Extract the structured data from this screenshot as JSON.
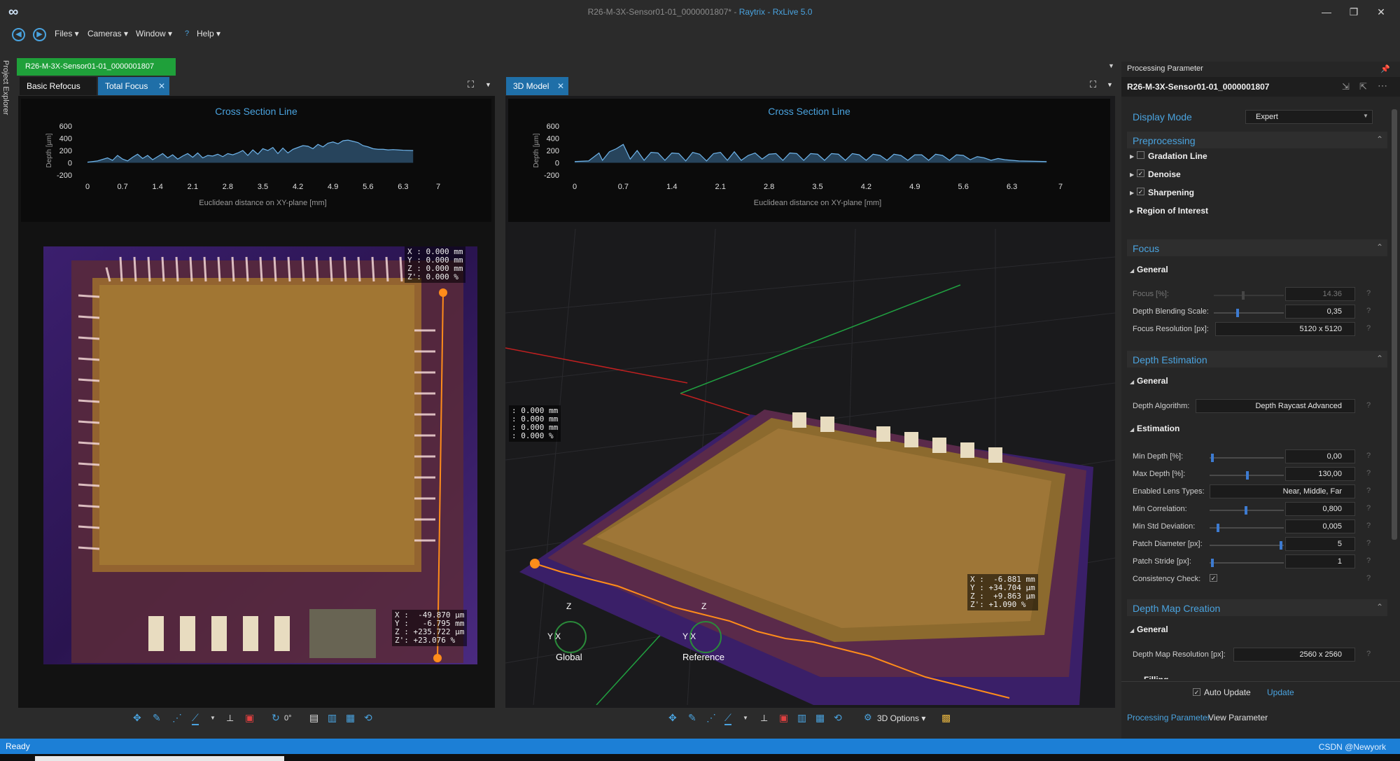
{
  "window": {
    "title_main": "R26-M-3X-Sensor01-01_0000001807* - ",
    "title_app": "Raytrix - RxLive 5.0"
  },
  "menu": {
    "items": [
      "Files ▾",
      "Cameras ▾",
      "Window ▾",
      "Help ▾"
    ]
  },
  "project_explorer": {
    "label": "Project Explorer"
  },
  "left_pane": {
    "file_tab": "R26-M-3X-Sensor01-01_0000001807",
    "tabs": [
      "Basic Refocus",
      "Total Focus"
    ],
    "chart_title": "Cross Section Line",
    "readout_top": "X : 0.000 mm\nY : 0.000 mm\nZ : 0.000 mm\nZ': 0.000 %",
    "readout_bottom": "X :  -49.870 µm\nY :   -6.795 mm\nZ : +235.722 µm\nZ': +23.076 %"
  },
  "right_pane": {
    "tab": "3D Model",
    "chart_title": "Cross Section Line",
    "readout_left": ": 0.000 mm\n: 0.000 mm\n: 0.000 mm\n: 0.000 %",
    "readout_right": "X :  -6.881 mm\nY : +34.704 µm\nZ :  +9.863 µm\nZ': +1.090 %",
    "axis_global": {
      "z": "Z",
      "yx": "Y X",
      "label": "Global"
    },
    "axis_reference": {
      "z": "Z",
      "yx": "Y X",
      "label": "Reference"
    },
    "toolbar_3d_options": "3D Options ▾"
  },
  "left_toolbar": {
    "rotation": "0°"
  },
  "chart_data": [
    {
      "type": "area",
      "title": "Cross Section Line",
      "xlabel": "Euclidean distance on XY-plane [mm]",
      "ylabel": "Depth [µm]",
      "xlim": [
        0,
        7
      ],
      "ylim": [
        -200,
        600
      ],
      "xticks": [
        "0",
        "0.7",
        "1.4",
        "2.1",
        "2.8",
        "3.5",
        "4.2",
        "4.9",
        "5.6",
        "6.3",
        "7"
      ],
      "yticks": [
        "600",
        "400",
        "200",
        "0",
        "-200"
      ],
      "x": [
        0,
        0.2,
        0.4,
        0.5,
        0.6,
        0.7,
        0.8,
        0.9,
        1.0,
        1.1,
        1.2,
        1.3,
        1.4,
        1.5,
        1.6,
        1.7,
        1.8,
        1.9,
        2.0,
        2.1,
        2.2,
        2.3,
        2.4,
        2.5,
        2.6,
        2.7,
        2.8,
        2.9,
        3.0,
        3.1,
        3.2,
        3.3,
        3.4,
        3.5,
        3.6,
        3.7,
        3.8,
        3.9,
        4.0,
        4.1,
        4.2,
        4.3,
        4.4,
        4.5,
        4.6,
        4.7,
        4.8,
        4.9,
        5.0,
        5.1,
        5.2,
        5.3,
        5.4,
        5.5,
        5.6,
        5.7,
        5.8,
        5.9,
        6.0,
        6.1,
        6.2,
        6.3,
        6.5
      ],
      "y": [
        10,
        30,
        80,
        40,
        120,
        60,
        30,
        90,
        140,
        70,
        120,
        50,
        100,
        150,
        80,
        130,
        60,
        110,
        150,
        90,
        160,
        80,
        120,
        110,
        140,
        100,
        150,
        130,
        160,
        200,
        120,
        210,
        140,
        230,
        200,
        250,
        150,
        240,
        160,
        220,
        250,
        280,
        270,
        230,
        300,
        260,
        320,
        340,
        310,
        360,
        370,
        350,
        330,
        280,
        260,
        230,
        220,
        220,
        210,
        215,
        210,
        205,
        200
      ]
    },
    {
      "type": "area",
      "title": "Cross Section Line",
      "xlabel": "Euclidean distance on XY-plane [mm]",
      "ylabel": "Depth [µm]",
      "xlim": [
        0,
        7
      ],
      "ylim": [
        -200,
        600
      ],
      "xticks": [
        "0",
        "0.7",
        "1.4",
        "2.1",
        "2.8",
        "3.5",
        "4.2",
        "4.9",
        "5.6",
        "6.3",
        "7"
      ],
      "yticks": [
        "600",
        "400",
        "200",
        "0",
        "-200"
      ],
      "x": [
        0,
        0.2,
        0.35,
        0.4,
        0.5,
        0.6,
        0.7,
        0.8,
        0.9,
        1.0,
        1.1,
        1.2,
        1.3,
        1.4,
        1.5,
        1.6,
        1.7,
        1.8,
        1.9,
        2.0,
        2.1,
        2.2,
        2.3,
        2.4,
        2.5,
        2.6,
        2.7,
        2.8,
        2.9,
        3.0,
        3.1,
        3.2,
        3.3,
        3.4,
        3.5,
        3.6,
        3.7,
        3.8,
        3.9,
        4.0,
        4.1,
        4.2,
        4.3,
        4.4,
        4.5,
        4.6,
        4.7,
        4.8,
        4.9,
        5.0,
        5.1,
        5.2,
        5.3,
        5.4,
        5.5,
        5.6,
        5.7,
        5.8,
        5.9,
        6.0,
        6.1,
        6.2,
        6.4,
        6.8
      ],
      "y": [
        20,
        30,
        160,
        40,
        180,
        230,
        300,
        60,
        200,
        40,
        170,
        160,
        40,
        160,
        150,
        30,
        170,
        140,
        30,
        150,
        170,
        40,
        180,
        40,
        120,
        160,
        60,
        140,
        150,
        40,
        160,
        150,
        40,
        150,
        140,
        40,
        150,
        140,
        40,
        150,
        130,
        40,
        140,
        120,
        40,
        140,
        120,
        40,
        130,
        130,
        40,
        140,
        120,
        40,
        130,
        120,
        50,
        100,
        80,
        40,
        70,
        50,
        30,
        20
      ]
    }
  ],
  "right_panel": {
    "header": "Processing Parameter",
    "title": "R26-M-3X-Sensor01-01_0000001807",
    "display_mode_label": "Display Mode",
    "display_mode_value": "Expert",
    "sections": {
      "preprocessing": "Preprocessing",
      "focus": "Focus",
      "depth_estimation": "Depth Estimation",
      "depth_map_creation": "Depth Map Creation"
    },
    "pre_items": [
      "Gradation Line",
      "Denoise",
      "Sharpening",
      "Region of Interest"
    ],
    "general": "General",
    "estimation": "Estimation",
    "filling": "Filling",
    "focus_rows": [
      {
        "label": "Focus [%]:",
        "value": "14.36"
      },
      {
        "label": "Depth Blending Scale:",
        "value": "0,35"
      },
      {
        "label": "Focus Resolution [px]:",
        "value": "5120 x 5120"
      }
    ],
    "depth_algorithm_label": "Depth Algorithm:",
    "depth_algorithm_value": "Depth Raycast Advanced",
    "est_rows": [
      {
        "label": "Min Depth [%]:",
        "value": "0,00"
      },
      {
        "label": "Max Depth [%]:",
        "value": "130,00"
      },
      {
        "label": "Enabled Lens Types:",
        "value": "Near, Middle, Far"
      },
      {
        "label": "Min Correlation:",
        "value": "0,800"
      },
      {
        "label": "Min Std Deviation:",
        "value": "0,005"
      },
      {
        "label": "Patch Diameter [px]:",
        "value": "5"
      },
      {
        "label": "Patch Stride [px]:",
        "value": "1"
      },
      {
        "label": "Consistency Check:",
        "value": "✓"
      }
    ],
    "depth_map_resolution_label": "Depth Map Resolution [px]:",
    "depth_map_resolution_value": "2560 x 2560",
    "auto_update": "Auto Update",
    "update": "Update",
    "bottom_tabs": [
      "Processing Parameter",
      "View Parameter"
    ],
    "help": "?"
  },
  "status": {
    "text": "Ready",
    "watermark": "CSDN @Newyork"
  },
  "colors": {
    "accent": "#4aa3df",
    "status_bar": "#1c7fd6",
    "file_tab": "#1fa03a",
    "active_tab": "#1f6fa8"
  }
}
